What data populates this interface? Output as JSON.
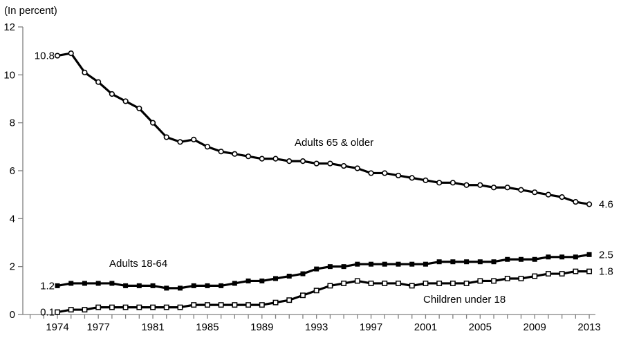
{
  "title": "(In percent)",
  "chart_data": {
    "type": "line",
    "title": "(In percent)",
    "xlabel": "",
    "ylabel": "(In percent)",
    "x_start": 1974,
    "x_end": 2013,
    "x": [
      1974,
      1975,
      1976,
      1977,
      1978,
      1979,
      1980,
      1981,
      1982,
      1983,
      1984,
      1985,
      1986,
      1987,
      1988,
      1989,
      1990,
      1991,
      1992,
      1993,
      1994,
      1995,
      1996,
      1997,
      1998,
      1999,
      2000,
      2001,
      2002,
      2003,
      2004,
      2005,
      2006,
      2007,
      2008,
      2009,
      2010,
      2011,
      2012,
      2013
    ],
    "x_tick_labels": [
      "1974",
      "1977",
      "1981",
      "1985",
      "1989",
      "1993",
      "1997",
      "2001",
      "2005",
      "2009",
      "2013"
    ],
    "y_ticks": [
      "0",
      "2",
      "4",
      "6",
      "8",
      "10",
      "12"
    ],
    "ylim": [
      0,
      12
    ],
    "grid": "off",
    "legend": "inline-labels",
    "series": [
      {
        "name": "Adults 65 & older",
        "marker": "open-circle",
        "start_label": "10.8",
        "end_label": "4.6",
        "values": [
          10.8,
          10.9,
          10.1,
          9.7,
          9.2,
          8.9,
          8.6,
          8.0,
          7.4,
          7.2,
          7.3,
          7.0,
          6.8,
          6.7,
          6.6,
          6.5,
          6.5,
          6.4,
          6.4,
          6.3,
          6.3,
          6.2,
          6.1,
          5.9,
          5.9,
          5.8,
          5.7,
          5.6,
          5.5,
          5.5,
          5.4,
          5.4,
          5.3,
          5.3,
          5.2,
          5.1,
          5.0,
          4.9,
          4.7,
          4.6
        ]
      },
      {
        "name": "Adults 18-64",
        "marker": "filled-square",
        "start_label": "1.2",
        "end_label": "2.5",
        "values": [
          1.2,
          1.3,
          1.3,
          1.3,
          1.3,
          1.2,
          1.2,
          1.2,
          1.1,
          1.1,
          1.2,
          1.2,
          1.2,
          1.3,
          1.4,
          1.4,
          1.5,
          1.6,
          1.7,
          1.9,
          2.0,
          2.0,
          2.1,
          2.1,
          2.1,
          2.1,
          2.1,
          2.1,
          2.2,
          2.2,
          2.2,
          2.2,
          2.2,
          2.3,
          2.3,
          2.3,
          2.4,
          2.4,
          2.4,
          2.5
        ]
      },
      {
        "name": "Children under 18",
        "marker": "open-square",
        "start_label": "0.1",
        "end_label": "1.8",
        "values": [
          0.1,
          0.2,
          0.2,
          0.3,
          0.3,
          0.3,
          0.3,
          0.3,
          0.3,
          0.3,
          0.4,
          0.4,
          0.4,
          0.4,
          0.4,
          0.4,
          0.5,
          0.6,
          0.8,
          1.0,
          1.2,
          1.3,
          1.4,
          1.3,
          1.3,
          1.3,
          1.2,
          1.3,
          1.3,
          1.3,
          1.3,
          1.4,
          1.4,
          1.5,
          1.5,
          1.6,
          1.7,
          1.7,
          1.8,
          1.8
        ]
      }
    ],
    "colors": {
      "line": "#000000",
      "axis": "#808080",
      "text": "#000000",
      "background": "#ffffff",
      "marker_fill_open": "#ffffff"
    }
  }
}
